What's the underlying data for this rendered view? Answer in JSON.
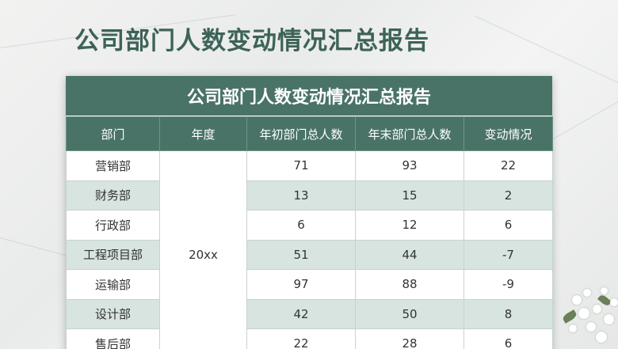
{
  "page": {
    "title": "公司部门人数变动情况汇总报告"
  },
  "table": {
    "banner": "公司部门人数变动情况汇总报告",
    "headers": [
      "部门",
      "年度",
      "年初部门总人数",
      "年末部门总人数",
      "变动情况"
    ],
    "year": "20xx",
    "rows": [
      {
        "dept": "营销部",
        "start": "71",
        "end": "93",
        "change": "22"
      },
      {
        "dept": "财务部",
        "start": "13",
        "end": "15",
        "change": "2"
      },
      {
        "dept": "行政部",
        "start": "6",
        "end": "12",
        "change": "6"
      },
      {
        "dept": "工程项目部",
        "start": "51",
        "end": "44",
        "change": "-7"
      },
      {
        "dept": "运输部",
        "start": "97",
        "end": "88",
        "change": "-9"
      },
      {
        "dept": "设计部",
        "start": "42",
        "end": "50",
        "change": "8"
      },
      {
        "dept": "售后部",
        "start": "22",
        "end": "28",
        "change": "6"
      }
    ]
  },
  "colors": {
    "header": "#4a7367",
    "title": "#3d6358",
    "stripe": "#d7e4e0"
  }
}
